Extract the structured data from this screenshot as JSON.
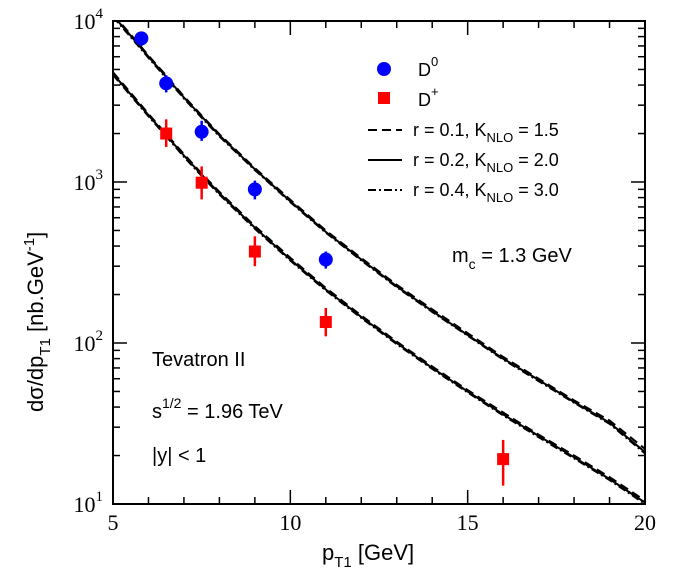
{
  "chart_data": {
    "type": "scatter",
    "y_scale": "log",
    "xlim": [
      5,
      20
    ],
    "ylim": [
      10,
      10000
    ],
    "xlabel": {
      "base": "p",
      "sub": "T1",
      "rest": " [GeV]"
    },
    "ylabel": {
      "p1": "dσ/dp",
      "sub": "T1",
      "p2": " [nb.GeV",
      "sup": "-1",
      "p3": "]"
    },
    "x_ticks": [
      5,
      10,
      15,
      20
    ],
    "x_tick_labels": [
      "5",
      "10",
      "15",
      "20"
    ],
    "y_ticks": [
      10,
      100,
      1000,
      10000
    ],
    "y_tick_labels": [
      {
        "base": "10",
        "exp": "1"
      },
      {
        "base": "10",
        "exp": "2"
      },
      {
        "base": "10",
        "exp": "3"
      },
      {
        "base": "10",
        "exp": "4"
      }
    ],
    "grid": false,
    "legend_position": "top-right",
    "series": [
      {
        "name": "D0",
        "label_base": "D",
        "label_sup": "0",
        "marker": "circle",
        "color": "#0000ff",
        "points": [
          {
            "x": 5.8,
            "y": 7800,
            "ylow": 7000,
            "yhigh": 8600
          },
          {
            "x": 6.5,
            "y": 4100,
            "ylow": 3600,
            "yhigh": 4600
          },
          {
            "x": 7.5,
            "y": 2050,
            "ylow": 1800,
            "yhigh": 2400
          },
          {
            "x": 9.0,
            "y": 900,
            "ylow": 780,
            "yhigh": 1020
          },
          {
            "x": 11.0,
            "y": 330,
            "ylow": 290,
            "yhigh": 370
          }
        ]
      },
      {
        "name": "D+",
        "label_base": "D",
        "label_sup": "+",
        "marker": "square",
        "color": "#ff0000",
        "points": [
          {
            "x": 6.5,
            "y": 2000,
            "ylow": 1650,
            "yhigh": 2450
          },
          {
            "x": 7.5,
            "y": 990,
            "ylow": 780,
            "yhigh": 1250
          },
          {
            "x": 9.0,
            "y": 370,
            "ylow": 300,
            "yhigh": 460
          },
          {
            "x": 11.0,
            "y": 135,
            "ylow": 110,
            "yhigh": 165
          },
          {
            "x": 16.0,
            "y": 19,
            "ylow": 13,
            "yhigh": 25
          }
        ]
      }
    ],
    "curves": [
      {
        "group": "D0",
        "style": "solid",
        "x": [
          5,
          5.5,
          6,
          6.5,
          7,
          7.5,
          8,
          9,
          10,
          11,
          12,
          13,
          14,
          15,
          16,
          17,
          18,
          19,
          20
        ],
        "y": [
          10800,
          8100,
          6000,
          4500,
          3350,
          2550,
          1950,
          1200,
          760,
          490,
          330,
          225,
          158,
          112,
          80,
          59,
          43,
          32,
          21
        ]
      },
      {
        "group": "D0",
        "style": "dashed",
        "x": [
          5,
          5.5,
          6,
          6.5,
          7,
          7.5,
          8,
          9,
          10,
          11,
          12,
          13,
          14,
          15,
          16,
          17,
          18,
          19,
          20
        ],
        "y": [
          11000,
          8250,
          6100,
          4580,
          3400,
          2590,
          1980,
          1220,
          775,
          500,
          337,
          230,
          162,
          115,
          82,
          60,
          44,
          33,
          22
        ]
      },
      {
        "group": "D0",
        "style": "dashdot",
        "x": [
          5,
          5.5,
          6,
          6.5,
          7,
          7.5,
          8,
          9,
          10,
          11,
          12,
          13,
          14,
          15,
          16,
          17,
          18,
          19,
          20
        ],
        "y": [
          10600,
          7950,
          5900,
          4420,
          3300,
          2510,
          1920,
          1185,
          750,
          484,
          326,
          222,
          156,
          111,
          79,
          58,
          42.5,
          31.5,
          20.6
        ]
      },
      {
        "group": "D+",
        "style": "solid",
        "x": [
          5,
          5.5,
          6,
          6.5,
          7,
          7.5,
          8,
          9,
          10,
          11,
          12,
          13,
          14,
          15,
          16,
          17,
          18,
          19,
          20
        ],
        "y": [
          4700,
          3500,
          2600,
          1950,
          1460,
          1110,
          850,
          520,
          330,
          215,
          145,
          100,
          70,
          50,
          36,
          26.5,
          19.5,
          14.3,
          10.2
        ]
      },
      {
        "group": "D+",
        "style": "dashed",
        "x": [
          5,
          5.5,
          6,
          6.5,
          7,
          7.5,
          8,
          9,
          10,
          11,
          12,
          13,
          14,
          15,
          16,
          17,
          18,
          19,
          20
        ],
        "y": [
          4800,
          3580,
          2650,
          1990,
          1490,
          1130,
          868,
          532,
          338,
          220,
          148,
          102,
          71.5,
          51,
          37,
          27,
          20,
          14.7,
          10.5
        ]
      },
      {
        "group": "D+",
        "style": "dashdot",
        "x": [
          5,
          5.5,
          6,
          6.5,
          7,
          7.5,
          8,
          9,
          10,
          11,
          12,
          13,
          14,
          15,
          16,
          17,
          18,
          19,
          20
        ],
        "y": [
          4620,
          3440,
          2560,
          1920,
          1435,
          1090,
          835,
          512,
          325,
          212,
          143,
          98.5,
          69,
          49.3,
          35.5,
          26,
          19.2,
          14.1,
          10.0
        ]
      }
    ],
    "legend": {
      "lines": [
        {
          "style": "dashed",
          "pre": "r = 0.1, K",
          "sub": "NLO",
          "post": " = 1.5"
        },
        {
          "style": "solid",
          "pre": "r = 0.2, K",
          "sub": "NLO",
          "post": " = 2.0"
        },
        {
          "style": "dashdot",
          "pre": "r = 0.4, K",
          "sub": "NLO",
          "post": " = 3.0"
        }
      ]
    },
    "annotations": {
      "mass": {
        "pre": "m",
        "sub": "c",
        "post": " = 1.3 GeV"
      },
      "collider": "Tevatron II",
      "energy": {
        "pre": "s",
        "sup": "1/2",
        "post": " = 1.96 TeV"
      },
      "rapidity": "|y| < 1"
    }
  }
}
